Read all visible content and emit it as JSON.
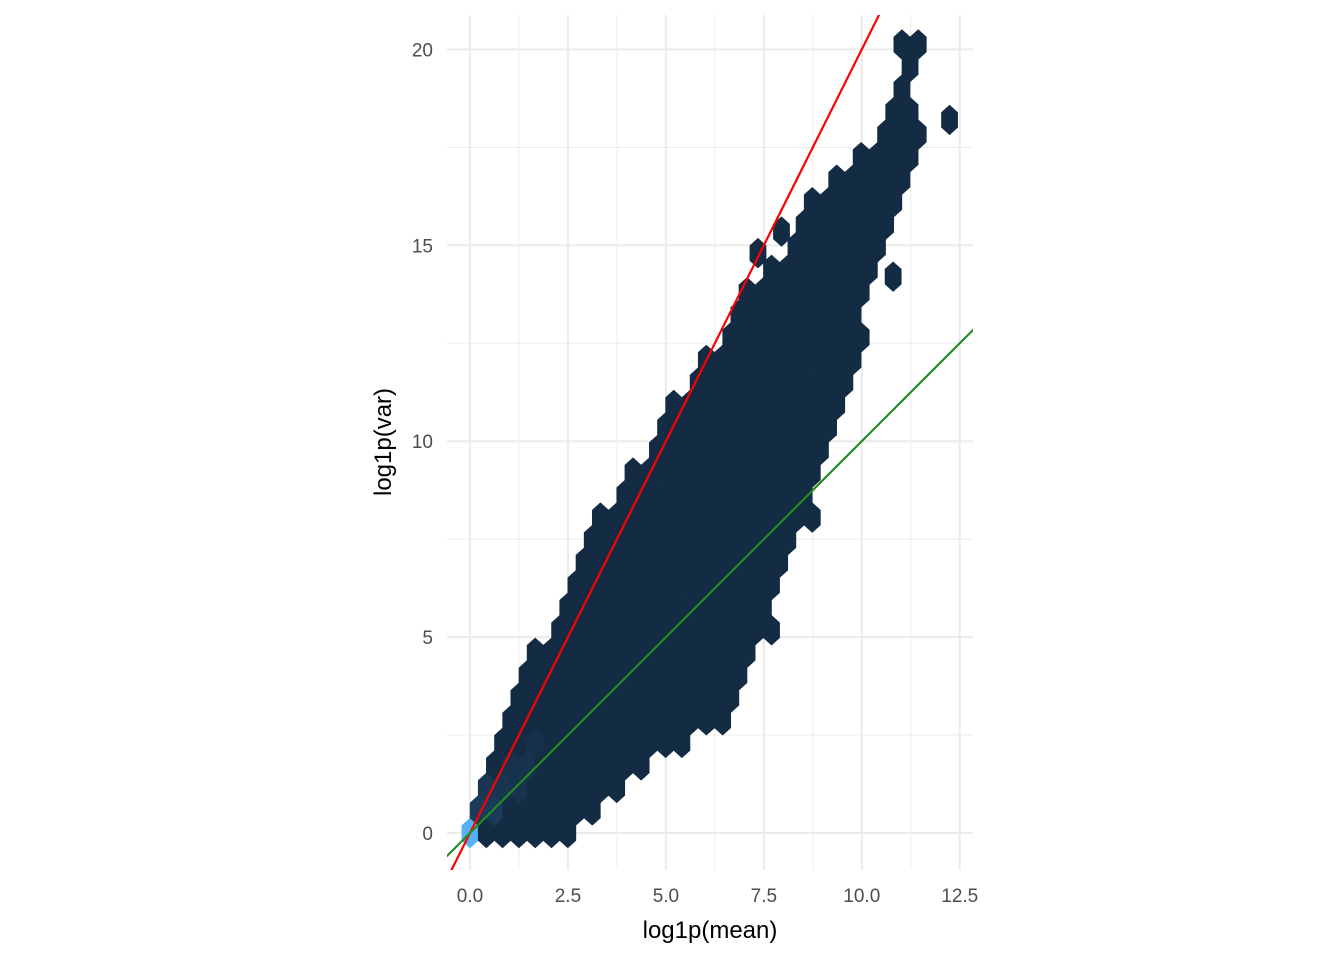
{
  "chart_data": {
    "type": "hexbin",
    "xlabel": "log1p(mean)",
    "ylabel": "log1p(var)",
    "xlim": [
      -0.59,
      12.83
    ],
    "ylim": [
      -0.95,
      20.9
    ],
    "grid": true,
    "legend": "none",
    "x_ticks": [
      0,
      2.5,
      5,
      7.5,
      10,
      12.5
    ],
    "x_tick_labels": [
      "0.0",
      "2.5",
      "5.0",
      "7.5",
      "10.0",
      "12.5"
    ],
    "y_ticks": [
      0,
      5,
      10,
      15,
      20
    ],
    "y_tick_labels": [
      "0",
      "5",
      "10",
      "15",
      "20"
    ],
    "fill_low": "#132B43",
    "fill_high": "#56B1F7",
    "band_extent": [
      {
        "y": 0,
        "x_min": 0.0,
        "x_max": 2.7
      },
      {
        "y": 1,
        "x_min": 0.2,
        "x_max": 3.6
      },
      {
        "y": 2,
        "x_min": 0.45,
        "x_max": 5.0
      },
      {
        "y": 3,
        "x_min": 0.8,
        "x_max": 6.8
      },
      {
        "y": 4,
        "x_min": 1.15,
        "x_max": 6.9
      },
      {
        "y": 5,
        "x_min": 2.0,
        "x_max": 7.65
      },
      {
        "y": 6,
        "x_min": 2.4,
        "x_max": 7.9
      },
      {
        "y": 7,
        "x_min": 2.7,
        "x_max": 7.9
      },
      {
        "y": 8,
        "x_min": 3.2,
        "x_max": 8.9
      },
      {
        "y": 9,
        "x_min": 4.0,
        "x_max": 8.7
      },
      {
        "y": 10,
        "x_min": 4.7,
        "x_max": 9.2
      },
      {
        "y": 11,
        "x_min": 5.2,
        "x_max": 9.4
      },
      {
        "y": 12,
        "x_min": 6.0,
        "x_max": 9.95
      },
      {
        "y": 13,
        "x_min": 6.8,
        "x_max": 9.95
      },
      {
        "y": 14,
        "x_min": 7.1,
        "x_max": 10.1
      },
      {
        "y": 15,
        "x_min": 8.2,
        "x_max": 10.5
      },
      {
        "y": 16,
        "x_min": 8.7,
        "x_max": 11.0
      },
      {
        "y": 17,
        "x_min": 9.4,
        "x_max": 11.4
      },
      {
        "y": 18,
        "x_min": 10.6,
        "x_max": 11.4
      },
      {
        "y": 19,
        "x_min": 10.8,
        "x_max": 11.3
      },
      {
        "y": 20,
        "x_min": 11.0,
        "x_max": 11.8
      }
    ],
    "isolated_bins": [
      {
        "x": 12.24,
        "y": 18.2
      },
      {
        "x": 10.8,
        "y": 14.2
      },
      {
        "x": 7.35,
        "y": 14.8
      },
      {
        "x": 7.95,
        "y": 15.35
      }
    ],
    "high_count_bins": [
      {
        "x": 0.0,
        "y": 0.0,
        "level": 1.0
      },
      {
        "x": 0.42,
        "y": 0.58,
        "level": 0.12
      },
      {
        "x": 0.62,
        "y": 1.15,
        "level": 0.08
      },
      {
        "x": 1.04,
        "y": 1.15,
        "level": 0.06
      },
      {
        "x": 1.25,
        "y": 1.73,
        "level": 0.05
      },
      {
        "x": 1.67,
        "y": 2.3,
        "level": 0.04
      }
    ],
    "lines": [
      {
        "color": "#FF0000",
        "slope": 2,
        "intercept": 0
      },
      {
        "color": "#228B22",
        "slope": 1,
        "intercept": 0
      }
    ]
  }
}
